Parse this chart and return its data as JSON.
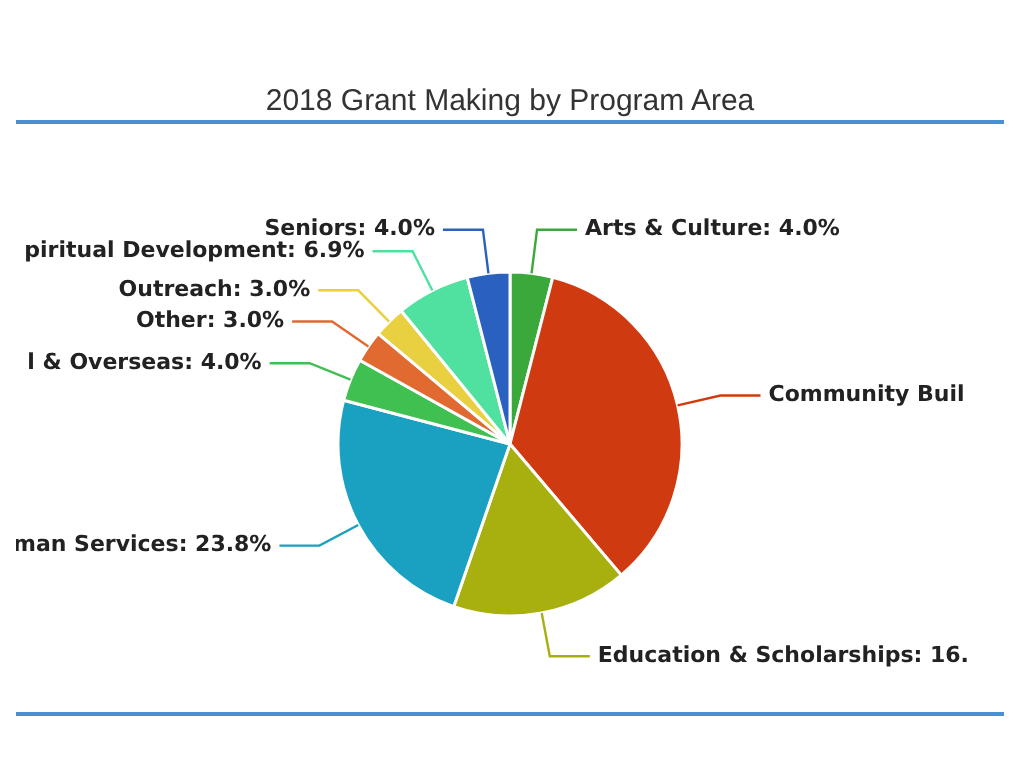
{
  "chart_data": {
    "type": "pie",
    "title": "2018 Grant Making by Program Area",
    "categories": [
      "Arts & Culture",
      "Community Buil",
      "Education & Scholarships",
      "man Services",
      "l & Overseas",
      "Other",
      "Outreach",
      "piritual Development",
      "Seniors"
    ],
    "values": [
      4.0,
      34.8,
      16.5,
      23.8,
      4.0,
      3.0,
      3.0,
      6.9,
      4.0
    ],
    "value_labels": [
      "4.0%",
      null,
      "16.",
      "23.8%",
      "4.0%",
      "3.0%",
      "3.0%",
      "6.9%",
      "4.0%"
    ],
    "colors": [
      "#3aa83a",
      "#d03a10",
      "#a8b010",
      "#1aa0c0",
      "#40c050",
      "#e06a30",
      "#e8d040",
      "#50e0a0",
      "#2a60c0"
    ],
    "legend": false
  }
}
